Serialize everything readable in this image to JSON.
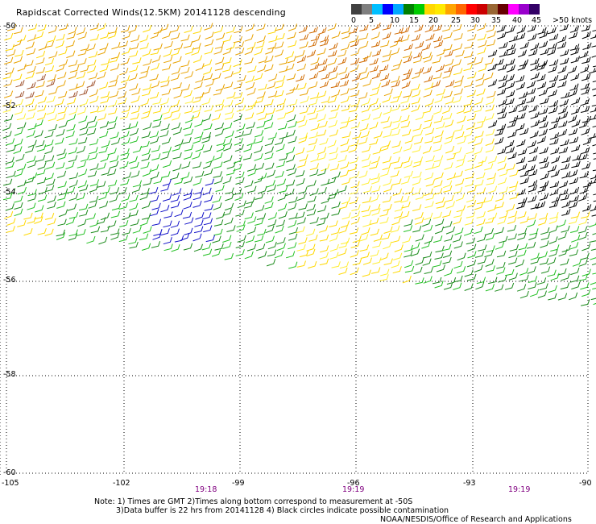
{
  "title": "Rapidscat Corrected Winds(12.5KM) 20141128 descending",
  "legend": {
    "colors": [
      "#404040",
      "#7f7f7f",
      "#00bfff",
      "#0000ff",
      "#00a8ff",
      "#008000",
      "#00cc00",
      "#ffd700",
      "#ffea00",
      "#ffa500",
      "#ff6600",
      "#ff0000",
      "#cc0000",
      "#996633",
      "#660000",
      "#ff00ff",
      "#9900cc",
      "#330066"
    ],
    "labels": [
      "0",
      "5",
      "10",
      "15",
      "20",
      "25",
      "30",
      "35",
      "40",
      "45",
      ">50 knots"
    ]
  },
  "map": {
    "lat_labels": [
      "-50",
      "-52",
      "-54",
      "-56",
      "-58",
      "-60"
    ],
    "lon_labels": [
      "-105",
      "-102",
      "-99",
      "-96",
      "-93",
      "-90"
    ],
    "time_labels": [
      "19:18",
      "19:19",
      "19:19"
    ]
  },
  "notes": {
    "line1": "Note: 1) Times are GMT 2)Times along bottom correspond to measurement at -50S",
    "line2": "3)Data buffer is 22 hrs from 20141128 4) Black circles indicate possible contamination",
    "credit": "NOAA/NESDIS/Office of Research and Applications"
  },
  "wind_colors": {
    "orange": "#e8a200",
    "dark_orange": "#d06a00",
    "brown": "#a0522d",
    "yellow": "#ffd800",
    "light_yellow": "#ffee30",
    "green": "#1a8a1a",
    "light_green": "#22c022",
    "blue": "#1010c8",
    "black": "#000000"
  }
}
